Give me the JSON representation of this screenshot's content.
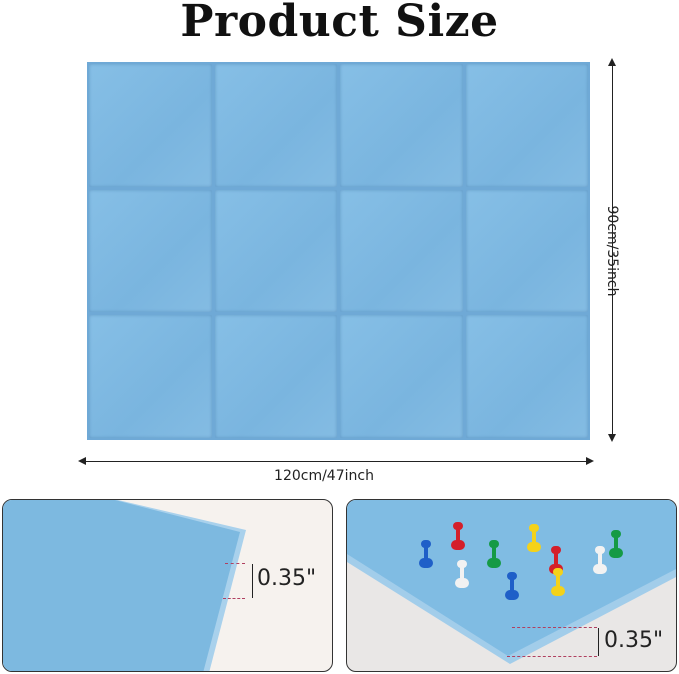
{
  "title": "Product Size",
  "height_label": "90cm/35inch",
  "width_label": "120cm/47inch",
  "thickness_label_left": "0.35\"",
  "thickness_label_right": "0.35\"",
  "colors": {
    "felt": "#7db9e0"
  },
  "pins": [
    {
      "color": "#1f5fc8"
    },
    {
      "color": "#d41f2a"
    },
    {
      "color": "#f2f2f2"
    },
    {
      "color": "#159a45"
    },
    {
      "color": "#1f5fc8"
    },
    {
      "color": "#f4d21a"
    },
    {
      "color": "#d41f2a"
    },
    {
      "color": "#f4d21a"
    },
    {
      "color": "#f2f2f2"
    },
    {
      "color": "#159a45"
    }
  ]
}
